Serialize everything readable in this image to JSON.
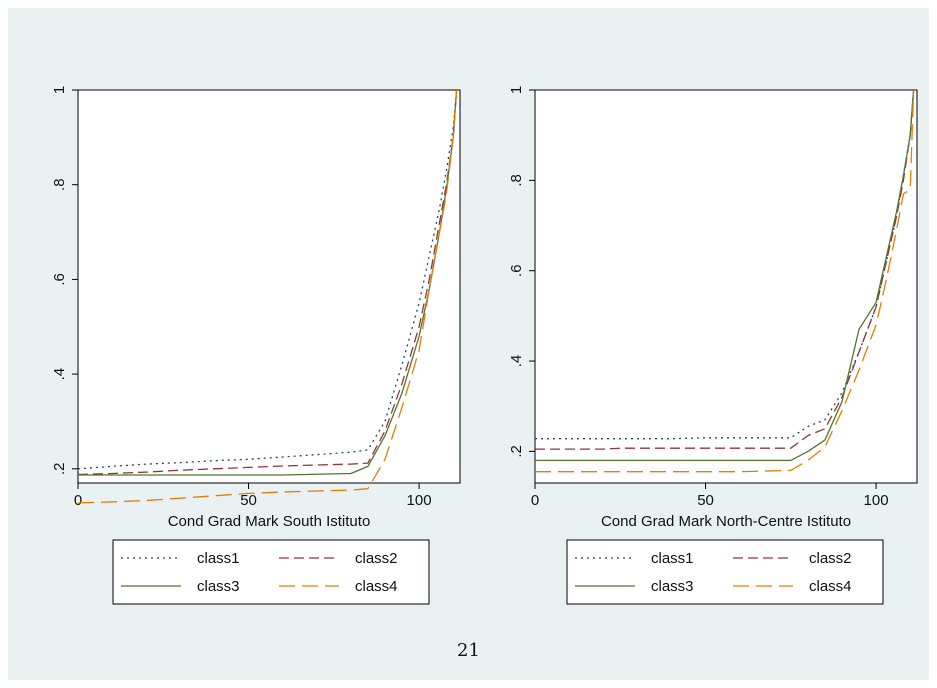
{
  "page_number": "21",
  "chart_data": [
    {
      "type": "line",
      "xlabel": "Cond Grad Mark South Istituto",
      "ylabel": "",
      "xlim": [
        0,
        112
      ],
      "ylim": [
        0.17,
        1.0
      ],
      "xticks": [
        "0",
        "50",
        "100"
      ],
      "yticks": [
        "1",
        ".8",
        ".6",
        ".4",
        ".2"
      ],
      "legend": {
        "position": "bottom",
        "columns": 2
      },
      "series": [
        {
          "name": "class1",
          "color": "#1a476f",
          "style": "dot",
          "x": [
            0,
            10,
            20,
            30,
            40,
            50,
            60,
            70,
            80,
            85,
            90,
            95,
            100,
            103,
            106,
            108,
            110,
            111
          ],
          "y": [
            0.2,
            0.205,
            0.21,
            0.213,
            0.217,
            0.22,
            0.225,
            0.23,
            0.235,
            0.24,
            0.3,
            0.42,
            0.55,
            0.65,
            0.75,
            0.83,
            0.92,
            1.0
          ]
        },
        {
          "name": "class2",
          "color": "#90353b",
          "style": "dash",
          "x": [
            0,
            10,
            20,
            30,
            40,
            50,
            60,
            70,
            80,
            85,
            90,
            95,
            100,
            103,
            106,
            108,
            110,
            111
          ],
          "y": [
            0.188,
            0.19,
            0.193,
            0.197,
            0.2,
            0.203,
            0.206,
            0.208,
            0.21,
            0.212,
            0.28,
            0.38,
            0.5,
            0.6,
            0.72,
            0.8,
            0.9,
            1.0
          ]
        },
        {
          "name": "class3",
          "color": "#55752f",
          "style": "solid",
          "x": [
            0,
            20,
            40,
            60,
            80,
            85,
            90,
            95,
            100,
            103,
            106,
            108,
            110,
            111
          ],
          "y": [
            0.187,
            0.187,
            0.187,
            0.187,
            0.19,
            0.205,
            0.27,
            0.36,
            0.48,
            0.58,
            0.7,
            0.79,
            0.9,
            1.0
          ]
        },
        {
          "name": "class4",
          "color": "#e37e00",
          "style": "longdash",
          "x": [
            0,
            10,
            20,
            30,
            40,
            50,
            60,
            70,
            80,
            85,
            90,
            95,
            100,
            103,
            106,
            108,
            110,
            111
          ],
          "y": [
            0.128,
            0.13,
            0.133,
            0.138,
            0.143,
            0.148,
            0.151,
            0.153,
            0.155,
            0.158,
            0.22,
            0.33,
            0.45,
            0.58,
            0.7,
            0.78,
            0.9,
            1.0
          ]
        }
      ]
    },
    {
      "type": "line",
      "xlabel": "Cond Grad Mark North-Centre Istituto",
      "ylabel": "",
      "xlim": [
        0,
        112
      ],
      "ylim": [
        0.13,
        1.0
      ],
      "xticks": [
        "0",
        "50",
        "100"
      ],
      "yticks": [
        "1",
        ".8",
        ".6",
        ".4",
        ".2"
      ],
      "legend": {
        "position": "bottom",
        "columns": 2
      },
      "series": [
        {
          "name": "class1",
          "color": "#1a476f",
          "style": "dot",
          "x": [
            0,
            10,
            20,
            30,
            40,
            50,
            60,
            70,
            75,
            80,
            85,
            90,
            95,
            100,
            103,
            106,
            108,
            110,
            111
          ],
          "y": [
            0.228,
            0.228,
            0.228,
            0.228,
            0.228,
            0.23,
            0.23,
            0.23,
            0.23,
            0.255,
            0.27,
            0.33,
            0.42,
            0.52,
            0.62,
            0.72,
            0.81,
            0.9,
            1.0
          ]
        },
        {
          "name": "class2",
          "color": "#90353b",
          "style": "dash",
          "x": [
            0,
            20,
            25,
            40,
            60,
            75,
            80,
            85,
            90,
            95,
            100,
            103,
            106,
            108,
            110,
            111
          ],
          "y": [
            0.205,
            0.205,
            0.207,
            0.207,
            0.207,
            0.207,
            0.235,
            0.25,
            0.32,
            0.42,
            0.52,
            0.62,
            0.72,
            0.8,
            0.9,
            1.0
          ]
        },
        {
          "name": "class3",
          "color": "#55752f",
          "style": "solid",
          "x": [
            0,
            20,
            40,
            60,
            75,
            80,
            85,
            90,
            95,
            100,
            103,
            106,
            108,
            110,
            111
          ],
          "y": [
            0.18,
            0.18,
            0.18,
            0.18,
            0.18,
            0.2,
            0.225,
            0.31,
            0.47,
            0.53,
            0.63,
            0.73,
            0.81,
            0.9,
            1.0
          ]
        },
        {
          "name": "class4",
          "color": "#e37e00",
          "style": "longdash",
          "x": [
            0,
            20,
            40,
            60,
            75,
            80,
            85,
            90,
            95,
            100,
            103,
            106,
            108,
            110,
            111
          ],
          "y": [
            0.155,
            0.155,
            0.155,
            0.155,
            0.158,
            0.18,
            0.21,
            0.29,
            0.38,
            0.48,
            0.58,
            0.69,
            0.77,
            0.78,
            1.0
          ]
        }
      ]
    }
  ]
}
